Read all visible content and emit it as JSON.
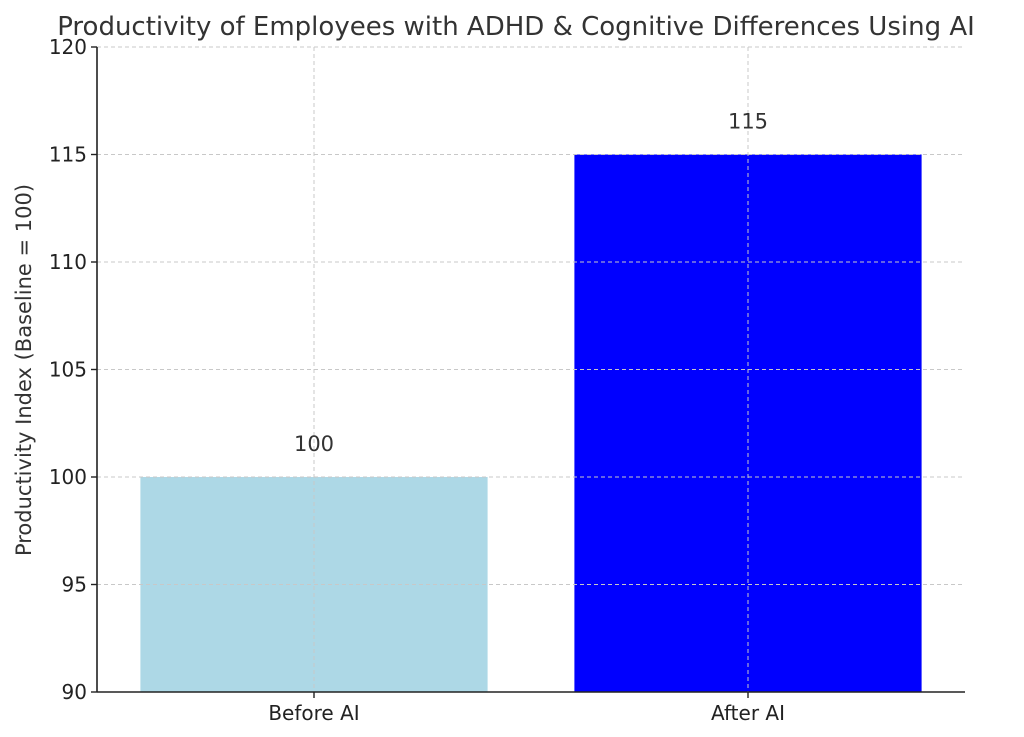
{
  "chart_data": {
    "type": "bar",
    "title": "Productivity of Employees with ADHD & Cognitive Differences Using AI",
    "xlabel": "",
    "ylabel": "Productivity Index (Baseline = 100)",
    "categories": [
      "Before AI",
      "After AI"
    ],
    "values": [
      100,
      115
    ],
    "data_labels": [
      "100",
      "115"
    ],
    "colors": [
      "#add8e6",
      "#0000ff"
    ],
    "ylim": [
      90,
      120
    ],
    "yticks": [
      90,
      95,
      100,
      105,
      110,
      115,
      120
    ],
    "grid": true,
    "legend": "none"
  }
}
